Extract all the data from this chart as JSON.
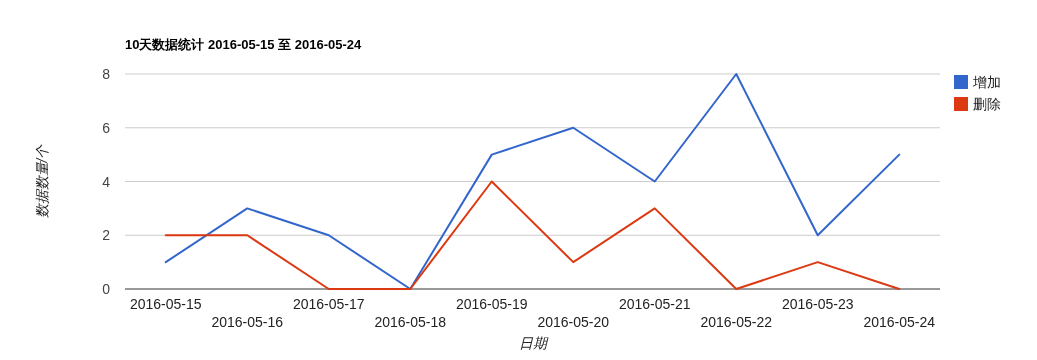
{
  "chart_data": {
    "type": "line",
    "title": "10天数据统计 2016-05-15 至 2016-05-24",
    "xlabel": "日期",
    "ylabel": "数据数量/个",
    "categories": [
      "2016-05-15",
      "2016-05-16",
      "2016-05-17",
      "2016-05-18",
      "2016-05-19",
      "2016-05-20",
      "2016-05-21",
      "2016-05-22",
      "2016-05-23",
      "2016-05-24"
    ],
    "series": [
      {
        "name": "增加",
        "color": "#3366cc",
        "values": [
          1,
          3,
          2,
          0,
          5,
          6,
          4,
          8,
          2,
          5
        ]
      },
      {
        "name": "删除",
        "color": "#dc3912",
        "values": [
          2,
          2,
          0,
          0,
          4,
          1,
          3,
          0,
          1,
          0
        ]
      }
    ],
    "ylim": [
      0,
      8
    ],
    "yticks": [
      0,
      2,
      4,
      6,
      8
    ],
    "grid": "y",
    "legend": "right"
  }
}
